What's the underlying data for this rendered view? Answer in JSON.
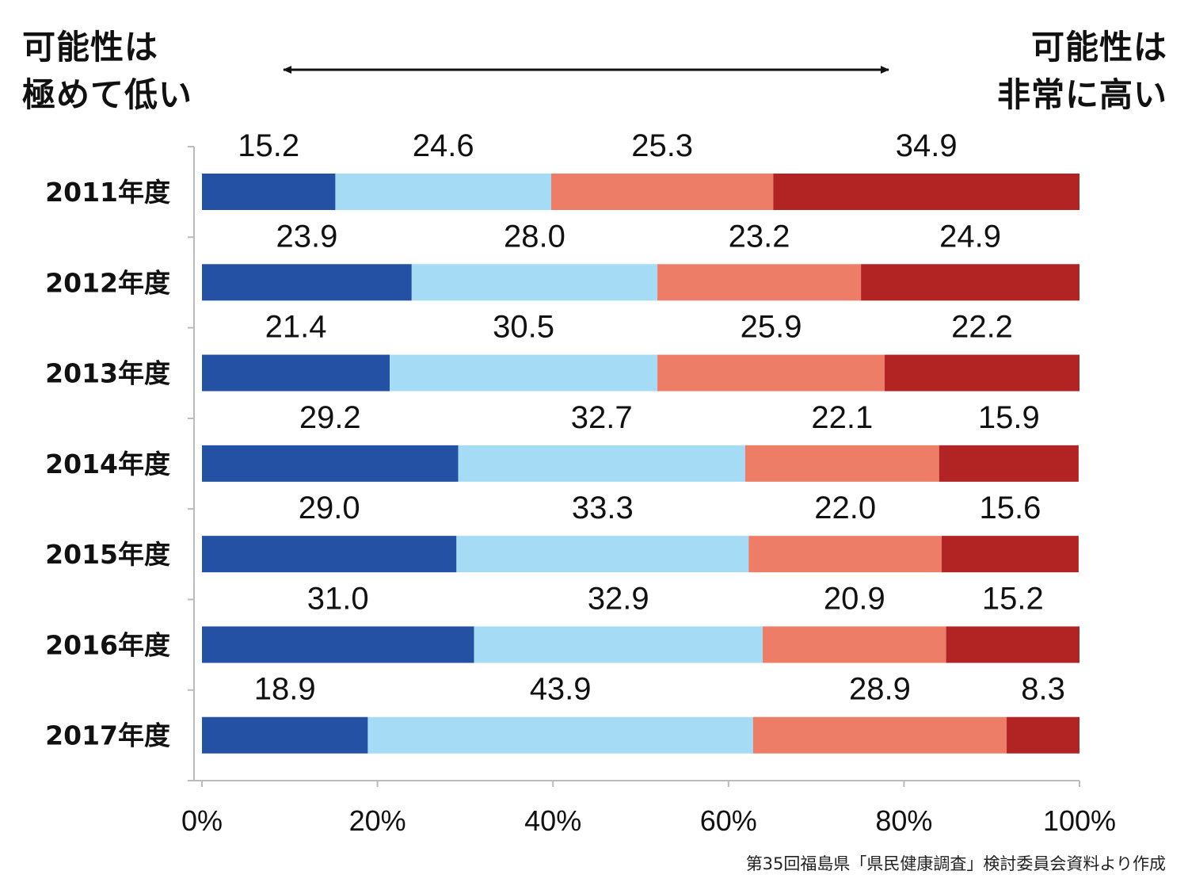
{
  "labels": {
    "left": "可能性は\n極めて低い",
    "right": "可能性は\n非常に高い"
  },
  "source": "第35回福島県「県民健康調査」検討委員会資料より作成",
  "chart_data": {
    "type": "bar",
    "orientation": "horizontal",
    "stacked": true,
    "percent_stacked": true,
    "categories": [
      "2011年度",
      "2012年度",
      "2013年度",
      "2014年度",
      "2015年度",
      "2016年度",
      "2017年度"
    ],
    "series": [
      {
        "color": "#2451a3",
        "values": [
          15.2,
          23.9,
          21.4,
          29.2,
          29.0,
          31.0,
          18.9
        ]
      },
      {
        "color": "#a6dbf5",
        "values": [
          24.6,
          28.0,
          30.5,
          32.7,
          33.3,
          32.9,
          43.9
        ]
      },
      {
        "color": "#ee7d68",
        "values": [
          25.3,
          23.2,
          25.9,
          22.1,
          22.0,
          20.9,
          28.9
        ]
      },
      {
        "color": "#b22424",
        "values": [
          34.9,
          24.9,
          22.2,
          15.9,
          15.6,
          15.2,
          8.3
        ]
      }
    ],
    "value_labels": [
      [
        "15.2",
        "24.6",
        "25.3",
        "34.9"
      ],
      [
        "23.9",
        "28.0",
        "23.2",
        "24.9"
      ],
      [
        "21.4",
        "30.5",
        "25.9",
        "22.2"
      ],
      [
        "29.2",
        "32.7",
        "22.1",
        "15.9"
      ],
      [
        "29.0",
        "33.3",
        "22.0",
        "15.6"
      ],
      [
        "31.0",
        "32.9",
        "20.9",
        "15.2"
      ],
      [
        "18.9",
        "43.9",
        "28.9",
        "8.3"
      ]
    ],
    "xlim": [
      0,
      100
    ],
    "xticks": [
      "0%",
      "20%",
      "40%",
      "60%",
      "80%",
      "100%"
    ],
    "grid": false,
    "axis_color": "#bbbbbb"
  }
}
